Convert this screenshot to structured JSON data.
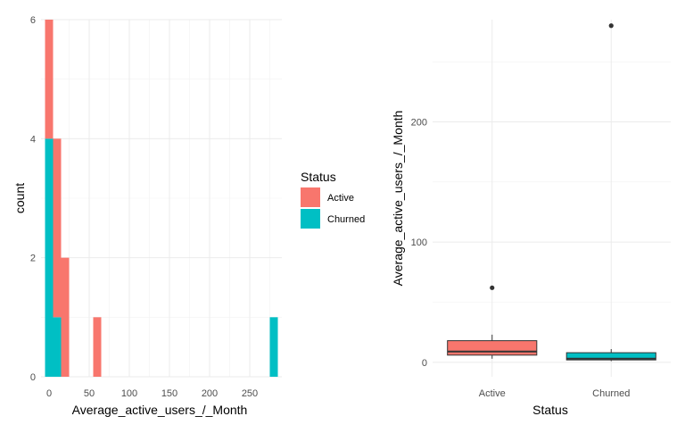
{
  "chart_data": [
    {
      "type": "bar",
      "subtype": "stacked-histogram",
      "title": "",
      "xlabel": "Average_active_users_/_Month",
      "ylabel": "count",
      "xlim": [
        -10,
        290
      ],
      "ylim": [
        0,
        6
      ],
      "xticks": [
        0,
        50,
        100,
        150,
        200,
        250
      ],
      "xtick_labels": [
        "0",
        "50",
        "100",
        "150",
        "200",
        "250"
      ],
      "yticks": [
        0,
        2,
        4,
        6
      ],
      "ytick_labels": [
        "0",
        "2",
        "4",
        "6"
      ],
      "bin_edges": [
        -5,
        5,
        15,
        25,
        55,
        65,
        275,
        285
      ],
      "series": [
        {
          "name": "Churned",
          "color": "#00BFC4",
          "bins": [
            {
              "x0": -5,
              "x1": 5,
              "count": 4
            },
            {
              "x0": 5,
              "x1": 15,
              "count": 1
            },
            {
              "x0": 275,
              "x1": 285,
              "count": 1
            }
          ]
        },
        {
          "name": "Active",
          "color": "#F8766D",
          "bins": [
            {
              "x0": -5,
              "x1": 5,
              "count": 2
            },
            {
              "x0": 5,
              "x1": 15,
              "count": 3
            },
            {
              "x0": 15,
              "x1": 25,
              "count": 2
            },
            {
              "x0": 55,
              "x1": 65,
              "count": 1
            }
          ]
        }
      ],
      "grid": true
    },
    {
      "type": "box",
      "title": "",
      "xlabel": "Status",
      "ylabel": "Average_active_users_/_Month",
      "categories": [
        "Active",
        "Churned"
      ],
      "ylim": [
        -12,
        285
      ],
      "yticks": [
        0,
        100,
        200
      ],
      "ytick_labels": [
        "0",
        "100",
        "200"
      ],
      "boxes": [
        {
          "category": "Active",
          "color": "#F8766D",
          "whisker_low": 3,
          "q1": 6,
          "median": 9,
          "q3": 18,
          "whisker_high": 23,
          "outliers": [
            62
          ]
        },
        {
          "category": "Churned",
          "color": "#00BFC4",
          "whisker_low": 1,
          "q1": 2,
          "median": 3,
          "q3": 8,
          "whisker_high": 11,
          "outliers": [
            280
          ]
        }
      ],
      "grid": true
    }
  ],
  "legend": {
    "title": "Status",
    "placement": "right of left panel",
    "items": [
      {
        "label": "Active",
        "color": "#F8766D"
      },
      {
        "label": "Churned",
        "color": "#00BFC4"
      }
    ]
  }
}
